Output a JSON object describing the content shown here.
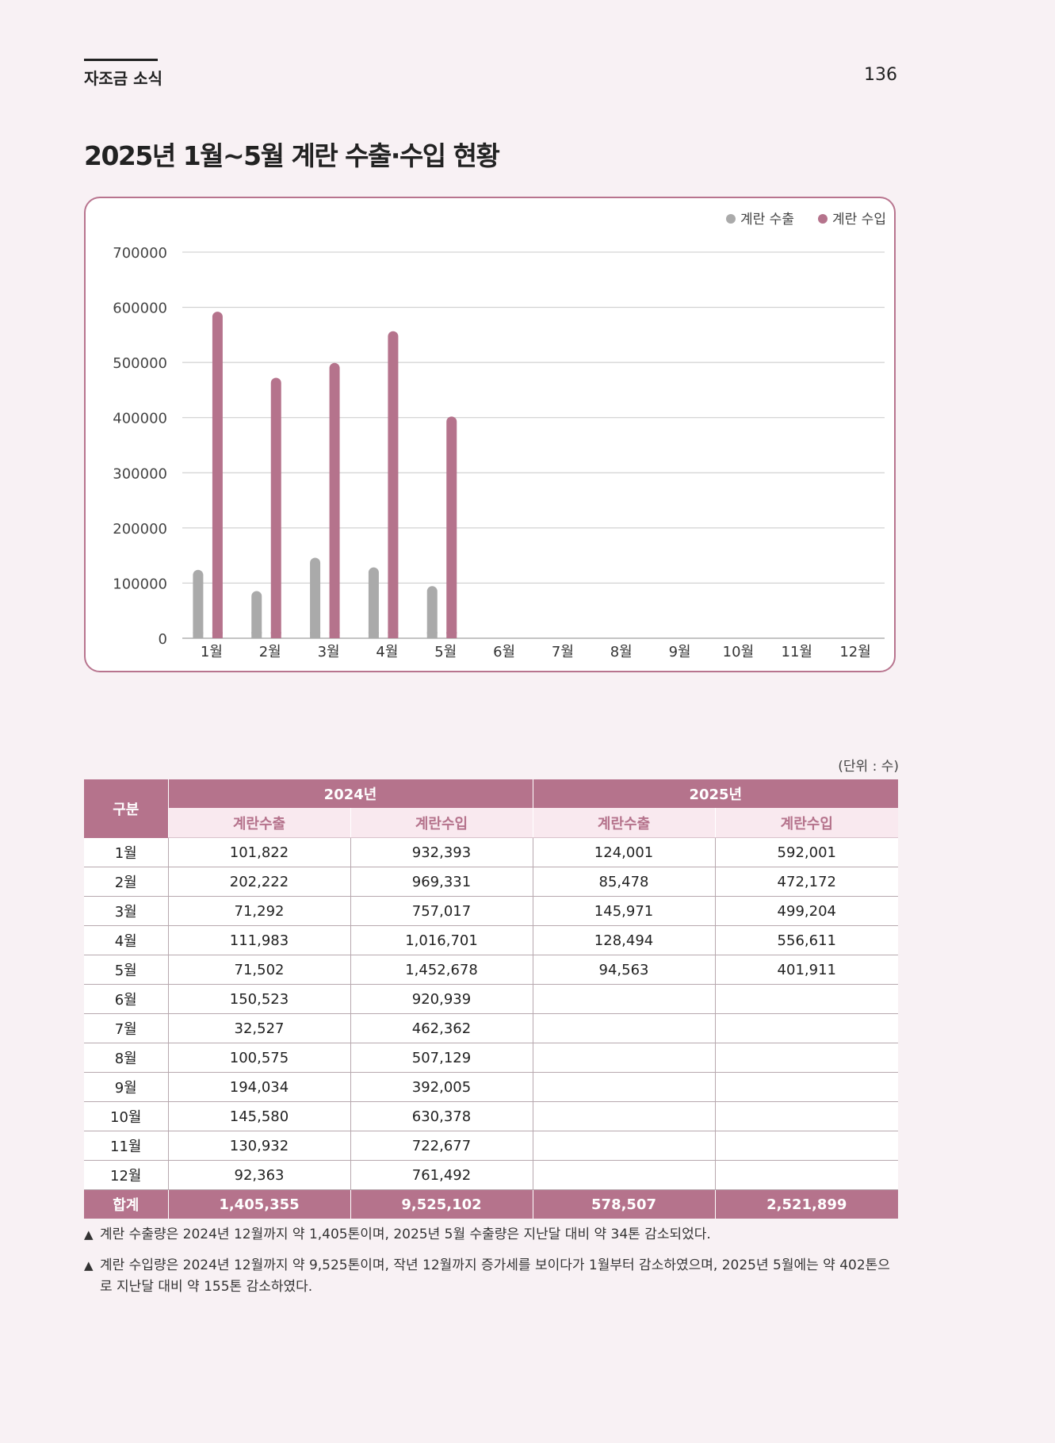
{
  "header": {
    "section_label": "자조금 소식",
    "page_number": "136"
  },
  "title": "2025년 1월~5월 계란 수출·수입 현황",
  "chart_data": {
    "type": "bar",
    "categories": [
      "1월",
      "2월",
      "3월",
      "4월",
      "5월",
      "6월",
      "7월",
      "8월",
      "9월",
      "10월",
      "11월",
      "12월"
    ],
    "series": [
      {
        "name": "계란 수출",
        "color": "#aaaaaa",
        "values": [
          124001,
          85478,
          145971,
          128494,
          94563,
          null,
          null,
          null,
          null,
          null,
          null,
          null
        ]
      },
      {
        "name": "계란 수입",
        "color": "#b5738c",
        "values": [
          592001,
          472172,
          499204,
          556611,
          401911,
          null,
          null,
          null,
          null,
          null,
          null,
          null
        ]
      }
    ],
    "ylim": [
      0,
      700000
    ],
    "yticks": [
      "700000",
      "600000",
      "500000",
      "400000",
      "300000",
      "200000",
      "100000",
      "0"
    ],
    "grid": true,
    "legend_position": "top-right"
  },
  "table": {
    "unit_note": "(단위 : 수)",
    "corner_label": "구분",
    "year_headers": [
      "2024년",
      "2025년"
    ],
    "sub_headers": [
      "계란수출",
      "계란수입",
      "계란수출",
      "계란수입"
    ],
    "rows": [
      {
        "label": "1월",
        "cells": [
          "101,822",
          "932,393",
          "124,001",
          "592,001"
        ]
      },
      {
        "label": "2월",
        "cells": [
          "202,222",
          "969,331",
          "85,478",
          "472,172"
        ]
      },
      {
        "label": "3월",
        "cells": [
          "71,292",
          "757,017",
          "145,971",
          "499,204"
        ]
      },
      {
        "label": "4월",
        "cells": [
          "111,983",
          "1,016,701",
          "128,494",
          "556,611"
        ]
      },
      {
        "label": "5월",
        "cells": [
          "71,502",
          "1,452,678",
          "94,563",
          "401,911"
        ]
      },
      {
        "label": "6월",
        "cells": [
          "150,523",
          "920,939",
          "",
          ""
        ]
      },
      {
        "label": "7월",
        "cells": [
          "32,527",
          "462,362",
          "",
          ""
        ]
      },
      {
        "label": "8월",
        "cells": [
          "100,575",
          "507,129",
          "",
          ""
        ]
      },
      {
        "label": "9월",
        "cells": [
          "194,034",
          "392,005",
          "",
          ""
        ]
      },
      {
        "label": "10월",
        "cells": [
          "145,580",
          "630,378",
          "",
          ""
        ]
      },
      {
        "label": "11월",
        "cells": [
          "130,932",
          "722,677",
          "",
          ""
        ]
      },
      {
        "label": "12월",
        "cells": [
          "92,363",
          "761,492",
          "",
          ""
        ]
      }
    ],
    "total": {
      "label": "합계",
      "cells": [
        "1,405,355",
        "9,525,102",
        "578,507",
        "2,521,899"
      ]
    }
  },
  "notes": [
    "계란 수출량은 2024년 12월까지 약 1,405톤이며, 2025년 5월 수출량은 지난달 대비 약 34톤 감소되었다.",
    "계란 수입량은 2024년 12월까지 약 9,525톤이며, 작년 12월까지 증가세를 보이다가 1월부터 감소하였으며, 2025년 5월에는 약 402톤으로 지난달 대비 약 155톤 감소하였다."
  ],
  "note_marker": "▲"
}
